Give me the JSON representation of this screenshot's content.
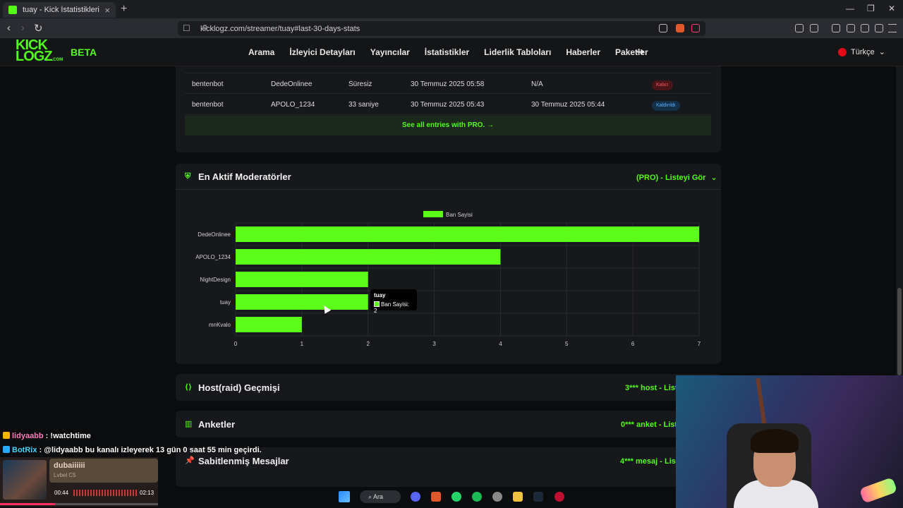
{
  "browser": {
    "tab_title": "tuay - Kick İstatistikleri",
    "url": "kicklogz.com/streamer/tuay#last-30-days-stats",
    "new_tab": "+",
    "tab_close": "×",
    "back": "‹",
    "forward": "›",
    "reload": "↻",
    "minimize": "—",
    "maximize": "❐",
    "close": "✕"
  },
  "site": {
    "logo_line1": "KICK",
    "logo_line2": "LOGZ",
    "logo_com": ".COM",
    "beta": "BETA",
    "nav": [
      "Arama",
      "İzleyici Detayları",
      "Yayıncılar",
      "İstatistikler",
      "Liderlik Tabloları",
      "Haberler",
      "Paketler"
    ],
    "login_icon": "➜",
    "language": "Türkçe",
    "lang_chevron": "⌄"
  },
  "bans_table": {
    "rows": [
      {
        "moderator": "bentenbot",
        "user": "DedeOnlinee",
        "duration": "Süresiz",
        "date": "30 Temmuz 2025 05:58",
        "end": "N/A",
        "status": "Kalıcı",
        "status_type": "permanent"
      },
      {
        "moderator": "bentenbot",
        "user": "APOLO_1234",
        "duration": "33 saniye",
        "date": "30 Temmuz 2025 05:43",
        "end": "30 Temmuz 2025 05:44",
        "status": "Kaldırıldı",
        "status_type": "removed"
      }
    ],
    "see_all": "See all entries with PRO. →"
  },
  "moderators_card": {
    "title": "En Aktif Moderatörler",
    "pro_link": "(PRO) - Listeyi Gör",
    "chevron": "⌄",
    "shield_icon": "⛨"
  },
  "chart_data": {
    "type": "bar",
    "orientation": "horizontal",
    "categories": [
      "DedeOnlinee",
      "APOLO_1234",
      "NightDesign",
      "tuay",
      "mnKvalo"
    ],
    "series": [
      {
        "name": "Ban Sayisi",
        "values": [
          7,
          4,
          2,
          2,
          1
        ]
      }
    ],
    "xlim": [
      0,
      7
    ],
    "x_ticks": [
      0,
      1,
      2,
      3,
      4,
      5,
      6,
      7
    ],
    "legend": "top",
    "grid": true,
    "bar_color": "#5dfc18",
    "tooltip": {
      "title": "tuay",
      "label": "Ban Sayisi: 2"
    }
  },
  "host_card": {
    "title": "Host(raid) Geçmişi",
    "pro_link": "3*** host - Liste",
    "icon": "⟨⟩"
  },
  "polls_card": {
    "title": "Anketler",
    "pro_link": "0*** anket - Liste",
    "icon": "▥"
  },
  "pinned_card": {
    "title": "Sabitlenmiş Mesajlar",
    "pro_link": "4*** mesaj - Liste",
    "icon": "📌"
  },
  "chat": [
    {
      "user": "lidyaabb",
      "message": " : !watchtime"
    },
    {
      "user": "BotRix",
      "message": " : @lidyaabb bu kanalı izleyerek 13 gün 0 saat 55 min geçirdi."
    }
  ],
  "player": {
    "track": "dubaiiiiii",
    "artist": "Lvbel C5",
    "elapsed": "00:44",
    "total": "02:13",
    "progress": 0.35
  },
  "taskbar": {
    "search": "Ara"
  }
}
